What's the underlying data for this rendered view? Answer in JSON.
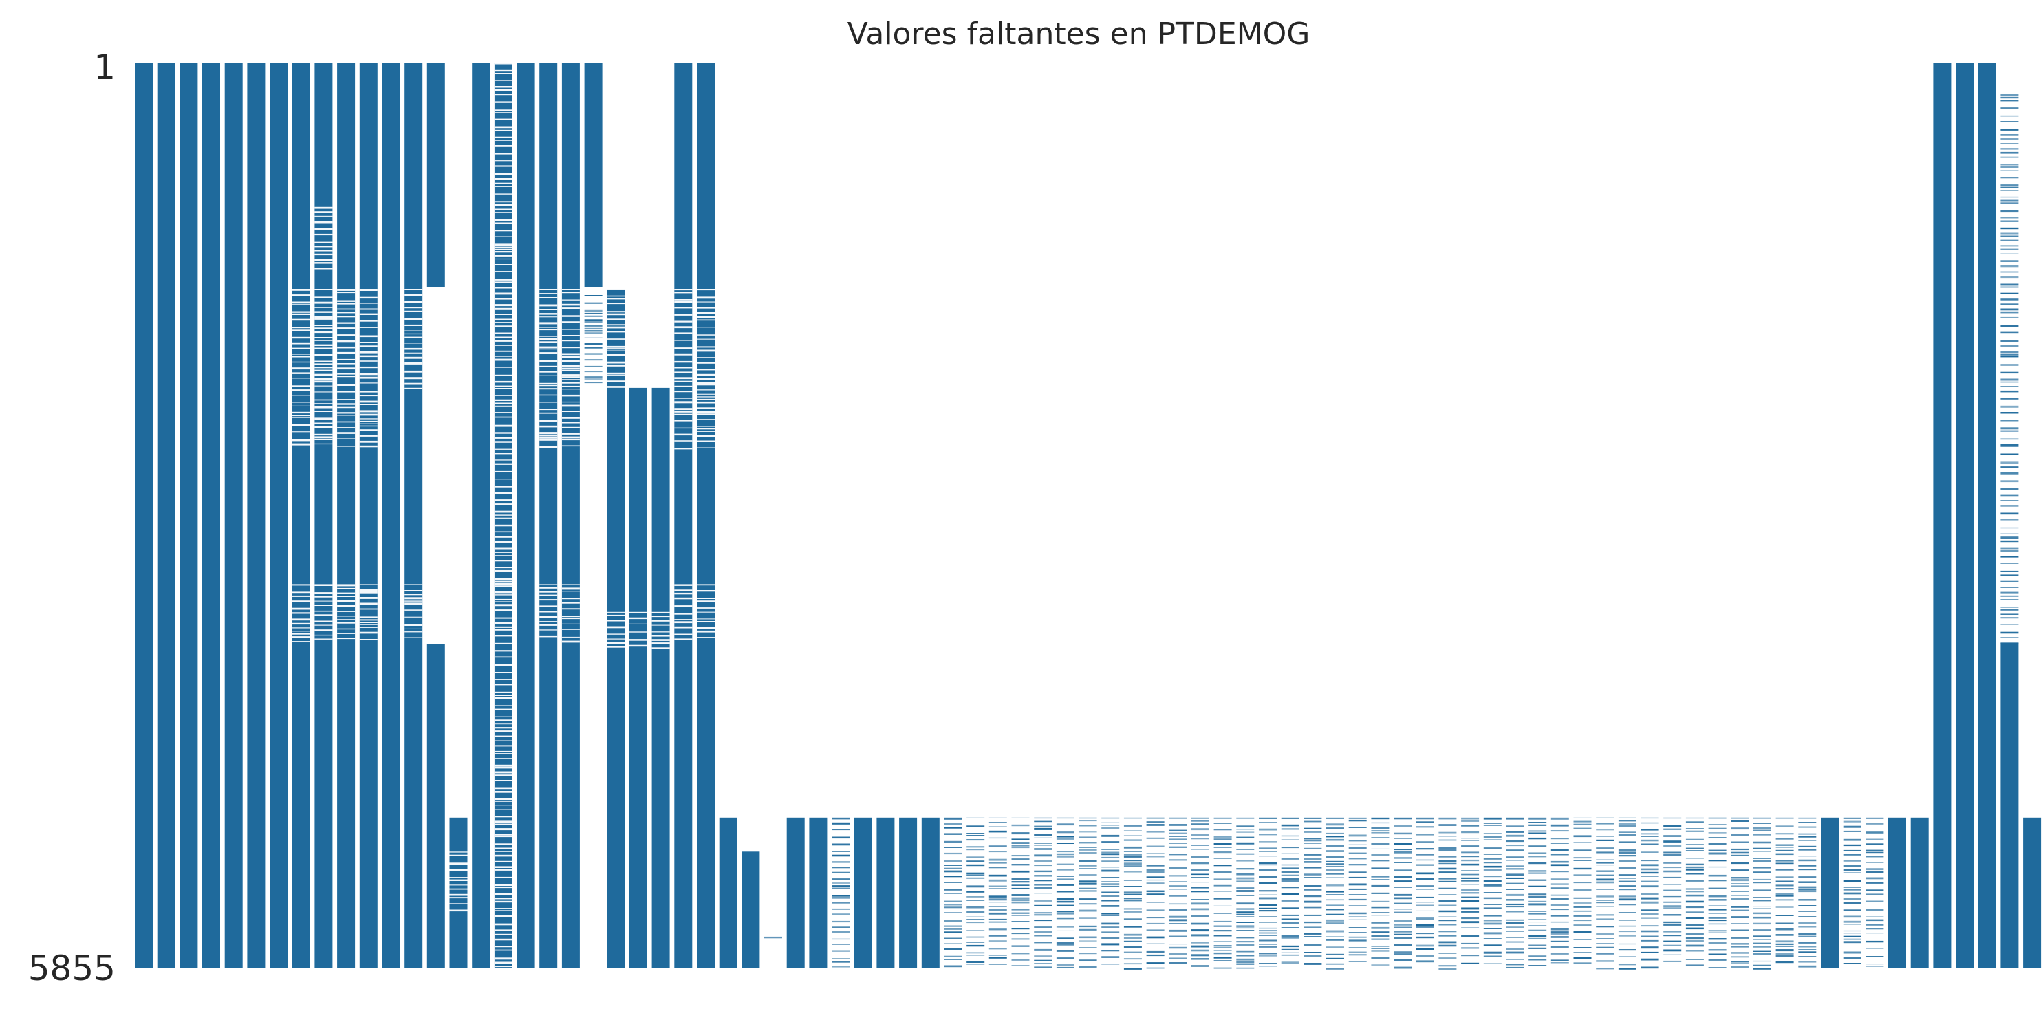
{
  "chart_data": {
    "type": "heatmap",
    "chart_kind": "missingness-matrix",
    "title": "Valores faltantes en PTDEMOG",
    "xlabel": "",
    "ylabel": "",
    "ylim": [
      1,
      5855
    ],
    "y_ticks": [
      "1",
      "5855"
    ],
    "y_tick_values": [
      1,
      5855
    ],
    "color_present": "#1f6a9c",
    "color_missing": "#ffffff",
    "grid": false,
    "legend": "none",
    "columns": [
      {
        "index": 1,
        "present": [
          [
            1,
            5855
          ]
        ]
      },
      {
        "index": 2,
        "present": [
          [
            1,
            5855
          ]
        ]
      },
      {
        "index": 3,
        "present": [
          [
            1,
            5855
          ]
        ]
      },
      {
        "index": 4,
        "present": [
          [
            1,
            5855
          ]
        ]
      },
      {
        "index": 5,
        "present": [
          [
            1,
            5855
          ]
        ]
      },
      {
        "index": 6,
        "present": [
          [
            1,
            5855
          ]
        ]
      },
      {
        "index": 7,
        "present": [
          [
            1,
            5855
          ]
        ]
      },
      {
        "index": 8,
        "present": [
          [
            1,
            5855
          ]
        ],
        "sparse": [
          [
            1460,
            2500
          ],
          [
            3370,
            3750
          ]
        ]
      },
      {
        "index": 9,
        "present": [
          [
            1,
            5855
          ]
        ],
        "sparse": [
          [
            930,
            1350
          ],
          [
            1460,
            2500
          ],
          [
            3370,
            3750
          ]
        ]
      },
      {
        "index": 10,
        "present": [
          [
            1,
            5855
          ]
        ],
        "sparse": [
          [
            1460,
            2500
          ],
          [
            3370,
            3750
          ]
        ]
      },
      {
        "index": 11,
        "present": [
          [
            1,
            5855
          ]
        ],
        "sparse": [
          [
            1460,
            2500
          ],
          [
            3370,
            3750
          ]
        ]
      },
      {
        "index": 12,
        "present": [
          [
            1,
            5855
          ]
        ]
      },
      {
        "index": 13,
        "present": [
          [
            1,
            5855
          ]
        ],
        "sparse": [
          [
            1460,
            2100
          ],
          [
            3370,
            3750
          ]
        ]
      },
      {
        "index": 14,
        "present": [
          [
            1,
            1450
          ],
          [
            3760,
            5855
          ]
        ]
      },
      {
        "index": 15,
        "present": [
          [
            4880,
            5855
          ]
        ],
        "sparse": [
          [
            5100,
            5500
          ]
        ]
      },
      {
        "index": 16,
        "present": [
          [
            1,
            5855
          ]
        ]
      },
      {
        "index": 17,
        "present": [
          [
            1,
            5855
          ]
        ],
        "sparse": [
          [
            1,
            5855
          ]
        ]
      },
      {
        "index": 18,
        "present": [
          [
            1,
            5855
          ]
        ]
      },
      {
        "index": 19,
        "present": [
          [
            1,
            5855
          ]
        ],
        "sparse": [
          [
            1460,
            2500
          ],
          [
            3370,
            3750
          ]
        ]
      },
      {
        "index": 20,
        "present": [
          [
            1,
            5855
          ]
        ],
        "sparse": [
          [
            1460,
            2500
          ],
          [
            3370,
            3750
          ]
        ]
      },
      {
        "index": 21,
        "present": [
          [
            1,
            1450
          ]
        ],
        "sparse": [
          [
            1500,
            2100
          ]
        ]
      },
      {
        "index": 22,
        "present": [
          [
            1460,
            5855
          ]
        ],
        "sparse": [
          [
            1460,
            2100
          ],
          [
            3550,
            3800
          ]
        ]
      },
      {
        "index": 23,
        "present": [
          [
            2100,
            5855
          ]
        ],
        "sparse": [
          [
            3550,
            3800
          ]
        ]
      },
      {
        "index": 24,
        "present": [
          [
            2100,
            5855
          ]
        ],
        "sparse": [
          [
            3550,
            3800
          ]
        ]
      },
      {
        "index": 25,
        "present": [
          [
            1,
            5855
          ]
        ],
        "sparse": [
          [
            1460,
            2500
          ],
          [
            3370,
            3750
          ]
        ]
      },
      {
        "index": 26,
        "present": [
          [
            1,
            5855
          ]
        ],
        "sparse": [
          [
            1460,
            2500
          ],
          [
            3370,
            3750
          ]
        ]
      },
      {
        "index": 27,
        "present": [
          [
            4880,
            5855
          ]
        ]
      },
      {
        "index": 28,
        "present": [
          [
            5100,
            5855
          ]
        ]
      },
      {
        "index": 29,
        "present": [],
        "sparse": [
          [
            5650,
            5660
          ]
        ]
      },
      {
        "index": 30,
        "present": [
          [
            4880,
            5855
          ]
        ]
      },
      {
        "index": 31,
        "present": [
          [
            4880,
            5855
          ]
        ]
      },
      {
        "index": 32,
        "present": [],
        "sparse": [
          [
            4880,
            5855
          ]
        ]
      },
      {
        "index": 33,
        "present": [
          [
            4880,
            5855
          ]
        ]
      },
      {
        "index": 34,
        "present": [
          [
            4880,
            5855
          ]
        ]
      },
      {
        "index": 35,
        "present": [
          [
            4880,
            5855
          ]
        ]
      },
      {
        "index": 36,
        "present": [
          [
            4880,
            5855
          ]
        ]
      },
      {
        "index": 37,
        "present": [],
        "sparse": [
          [
            4880,
            5855
          ]
        ]
      },
      {
        "index": 38,
        "present": [],
        "sparse": [
          [
            4880,
            5855
          ]
        ]
      },
      {
        "index": 39,
        "present": [],
        "sparse": [
          [
            4880,
            5855
          ]
        ]
      },
      {
        "index": 40,
        "present": [],
        "sparse": [
          [
            4880,
            5855
          ]
        ]
      },
      {
        "index": 41,
        "present": [],
        "sparse": [
          [
            4880,
            5855
          ]
        ]
      },
      {
        "index": 42,
        "present": [],
        "sparse": [
          [
            4880,
            5855
          ]
        ]
      },
      {
        "index": 43,
        "present": [],
        "sparse": [
          [
            4880,
            5855
          ]
        ]
      },
      {
        "index": 44,
        "present": [],
        "sparse": [
          [
            4880,
            5855
          ]
        ]
      },
      {
        "index": 45,
        "present": [],
        "sparse": [
          [
            4880,
            5855
          ]
        ]
      },
      {
        "index": 46,
        "present": [],
        "sparse": [
          [
            4880,
            5855
          ]
        ]
      },
      {
        "index": 47,
        "present": [],
        "sparse": [
          [
            4880,
            5855
          ]
        ]
      },
      {
        "index": 48,
        "present": [],
        "sparse": [
          [
            4880,
            5855
          ]
        ]
      },
      {
        "index": 49,
        "present": [],
        "sparse": [
          [
            4880,
            5855
          ]
        ]
      },
      {
        "index": 50,
        "present": [],
        "sparse": [
          [
            4880,
            5855
          ]
        ]
      },
      {
        "index": 51,
        "present": [],
        "sparse": [
          [
            4880,
            5855
          ]
        ]
      },
      {
        "index": 52,
        "present": [],
        "sparse": [
          [
            4880,
            5855
          ]
        ]
      },
      {
        "index": 53,
        "present": [],
        "sparse": [
          [
            4880,
            5855
          ]
        ]
      },
      {
        "index": 54,
        "present": [],
        "sparse": [
          [
            4880,
            5855
          ]
        ]
      },
      {
        "index": 55,
        "present": [],
        "sparse": [
          [
            4880,
            5855
          ]
        ]
      },
      {
        "index": 56,
        "present": [],
        "sparse": [
          [
            4880,
            5855
          ]
        ]
      },
      {
        "index": 57,
        "present": [],
        "sparse": [
          [
            4880,
            5855
          ]
        ]
      },
      {
        "index": 58,
        "present": [],
        "sparse": [
          [
            4880,
            5855
          ]
        ]
      },
      {
        "index": 59,
        "present": [],
        "sparse": [
          [
            4880,
            5855
          ]
        ]
      },
      {
        "index": 60,
        "present": [],
        "sparse": [
          [
            4880,
            5855
          ]
        ]
      },
      {
        "index": 61,
        "present": [],
        "sparse": [
          [
            4880,
            5855
          ]
        ]
      },
      {
        "index": 62,
        "present": [],
        "sparse": [
          [
            4880,
            5855
          ]
        ]
      },
      {
        "index": 63,
        "present": [],
        "sparse": [
          [
            4880,
            5855
          ]
        ]
      },
      {
        "index": 64,
        "present": [],
        "sparse": [
          [
            4880,
            5855
          ]
        ]
      },
      {
        "index": 65,
        "present": [],
        "sparse": [
          [
            4880,
            5855
          ]
        ]
      },
      {
        "index": 66,
        "present": [],
        "sparse": [
          [
            4880,
            5855
          ]
        ]
      },
      {
        "index": 67,
        "present": [],
        "sparse": [
          [
            4880,
            5855
          ]
        ]
      },
      {
        "index": 68,
        "present": [],
        "sparse": [
          [
            4880,
            5855
          ]
        ]
      },
      {
        "index": 69,
        "present": [],
        "sparse": [
          [
            4880,
            5855
          ]
        ]
      },
      {
        "index": 70,
        "present": [],
        "sparse": [
          [
            4880,
            5855
          ]
        ]
      },
      {
        "index": 71,
        "present": [],
        "sparse": [
          [
            4880,
            5855
          ]
        ]
      },
      {
        "index": 72,
        "present": [],
        "sparse": [
          [
            4880,
            5855
          ]
        ]
      },
      {
        "index": 73,
        "present": [],
        "sparse": [
          [
            4880,
            5855
          ]
        ]
      },
      {
        "index": 74,
        "present": [],
        "sparse": [
          [
            4880,
            5855
          ]
        ]
      },
      {
        "index": 75,
        "present": [],
        "sparse": [
          [
            4880,
            5855
          ]
        ]
      },
      {
        "index": 76,
        "present": [
          [
            4880,
            5855
          ]
        ]
      },
      {
        "index": 77,
        "present": [],
        "sparse": [
          [
            4880,
            5855
          ]
        ]
      },
      {
        "index": 78,
        "present": [],
        "sparse": [
          [
            4880,
            5855
          ]
        ]
      },
      {
        "index": 79,
        "present": [
          [
            4880,
            5855
          ]
        ]
      },
      {
        "index": 80,
        "present": [
          [
            4880,
            5855
          ]
        ]
      },
      {
        "index": 81,
        "present": [
          [
            1,
            5855
          ]
        ]
      },
      {
        "index": 82,
        "present": [
          [
            1,
            5855
          ]
        ]
      },
      {
        "index": 83,
        "present": [
          [
            1,
            5855
          ]
        ]
      },
      {
        "index": 84,
        "present": [
          [
            3750,
            5855
          ]
        ],
        "sparse": [
          [
            200,
            3750
          ]
        ]
      },
      {
        "index": 85,
        "present": [
          [
            4880,
            5855
          ]
        ]
      },
      {
        "index": 86,
        "present": [
          [
            4880,
            5855
          ]
        ]
      },
      {
        "index": 87,
        "present": [
          [
            4880,
            5855
          ]
        ]
      },
      {
        "index": 88,
        "present": [
          [
            1,
            5855
          ]
        ]
      }
    ]
  }
}
